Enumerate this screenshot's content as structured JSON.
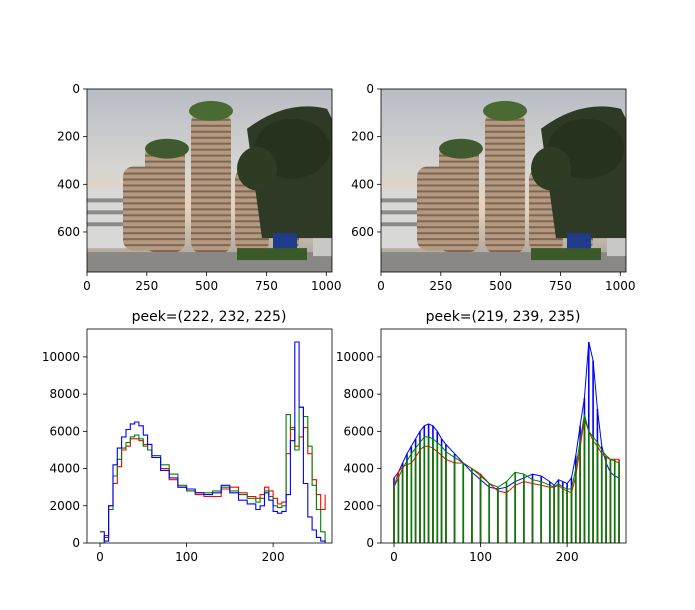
{
  "chart_data": [
    {
      "type": "image",
      "panel": "top-left",
      "title": "",
      "xlim": [
        0,
        1024
      ],
      "ylim": [
        768,
        0
      ],
      "xticks": [
        0,
        250,
        500,
        750,
        1000
      ],
      "yticks": [
        0,
        200,
        400,
        600
      ],
      "content": "photo of a building with stacked round towers and a tree, cloudy sky"
    },
    {
      "type": "image",
      "panel": "top-right",
      "title": "",
      "xlim": [
        0,
        1024
      ],
      "ylim": [
        768,
        0
      ],
      "xticks": [
        0,
        250,
        500,
        750,
        1000
      ],
      "yticks": [
        0,
        200,
        400,
        600
      ],
      "content": "photo of a building with stacked round towers and a tree, cloudy sky"
    },
    {
      "type": "line",
      "panel": "bottom-left",
      "title": "peek=(222, 232, 225)",
      "xlim": [
        -15,
        268
      ],
      "ylim": [
        0,
        11500
      ],
      "xticks": [
        0,
        100,
        200
      ],
      "yticks": [
        0,
        2000,
        4000,
        6000,
        8000,
        10000
      ],
      "series": [
        {
          "color": "#ff0000",
          "x": [
            0,
            5,
            10,
            15,
            20,
            25,
            30,
            35,
            40,
            45,
            50,
            55,
            60,
            70,
            80,
            90,
            100,
            110,
            120,
            130,
            140,
            150,
            160,
            170,
            180,
            185,
            190,
            195,
            200,
            205,
            210,
            215,
            220,
            225,
            230,
            235,
            240,
            245,
            250,
            255,
            260
          ],
          "y": [
            0,
            400,
            2000,
            3200,
            4100,
            5000,
            5200,
            5600,
            5600,
            5500,
            5300,
            5000,
            4600,
            4000,
            3400,
            3000,
            2800,
            2600,
            2500,
            2500,
            2900,
            3000,
            2700,
            2500,
            2400,
            2600,
            3000,
            2800,
            2400,
            2100,
            2200,
            4800,
            6200,
            5200,
            5700,
            6200,
            4800,
            3400,
            2600,
            1800,
            2600
          ]
        },
        {
          "color": "#008000",
          "x": [
            0,
            5,
            10,
            15,
            20,
            25,
            30,
            35,
            40,
            45,
            50,
            55,
            60,
            70,
            80,
            90,
            100,
            110,
            120,
            130,
            140,
            150,
            160,
            170,
            180,
            185,
            190,
            195,
            200,
            205,
            210,
            215,
            220,
            225,
            230,
            235,
            240,
            245,
            250,
            255,
            260
          ],
          "y": [
            0,
            300,
            1800,
            3600,
            4500,
            5100,
            5400,
            5700,
            5800,
            5600,
            5200,
            5000,
            4700,
            4200,
            3700,
            3100,
            2800,
            2700,
            2700,
            2800,
            3000,
            2800,
            2600,
            2400,
            2200,
            2400,
            2800,
            2500,
            2000,
            1900,
            2000,
            6900,
            6100,
            5000,
            7300,
            6800,
            5200,
            3100,
            1800,
            600,
            0
          ]
        },
        {
          "color": "#0000ff",
          "x": [
            0,
            5,
            10,
            15,
            20,
            25,
            30,
            35,
            40,
            45,
            50,
            55,
            60,
            70,
            80,
            90,
            100,
            110,
            120,
            130,
            140,
            150,
            160,
            170,
            180,
            185,
            190,
            195,
            200,
            205,
            210,
            215,
            220,
            225,
            230,
            235,
            240,
            245,
            250,
            255,
            260
          ],
          "y": [
            600,
            100,
            2000,
            4200,
            5100,
            5700,
            6100,
            6400,
            6500,
            6300,
            5800,
            5300,
            4600,
            3900,
            3500,
            3000,
            2900,
            2700,
            2600,
            2700,
            3100,
            2700,
            2300,
            2100,
            1800,
            2000,
            2700,
            2300,
            1700,
            1600,
            1700,
            2600,
            5500,
            10800,
            7300,
            3200,
            1400,
            700,
            300,
            100,
            0
          ]
        }
      ]
    },
    {
      "type": "bar",
      "panel": "bottom-right",
      "title": "peek=(219, 239, 235)",
      "xlim": [
        -15,
        268
      ],
      "ylim": [
        0,
        11500
      ],
      "xticks": [
        0,
        100,
        200
      ],
      "yticks": [
        0,
        2000,
        4000,
        6000,
        8000,
        10000
      ],
      "series": [
        {
          "color": "#0000ff",
          "x": [
            0,
            5,
            10,
            15,
            20,
            25,
            30,
            35,
            40,
            45,
            50,
            55,
            60,
            70,
            80,
            90,
            100,
            110,
            120,
            130,
            140,
            150,
            160,
            170,
            180,
            185,
            190,
            195,
            200,
            205,
            210,
            215,
            220,
            225,
            230,
            235,
            240,
            245,
            250,
            255,
            260
          ],
          "y": [
            3500,
            3800,
            4300,
            4800,
            5200,
            5600,
            6000,
            6300,
            6400,
            6300,
            6000,
            5600,
            5300,
            4800,
            4300,
            3800,
            3400,
            3000,
            2900,
            3000,
            3300,
            3500,
            3700,
            3600,
            3300,
            3100,
            3400,
            3300,
            3200,
            3500,
            4700,
            6300,
            7800,
            10800,
            9800,
            7200,
            5200,
            4300,
            3800,
            3600,
            3500
          ]
        },
        {
          "color": "#ff0000",
          "x": [
            0,
            5,
            10,
            15,
            20,
            25,
            30,
            35,
            40,
            45,
            50,
            55,
            60,
            70,
            80,
            90,
            100,
            110,
            120,
            130,
            140,
            150,
            160,
            170,
            180,
            185,
            190,
            195,
            200,
            205,
            210,
            215,
            220,
            225,
            230,
            235,
            240,
            245,
            250,
            255,
            260
          ],
          "y": [
            3000,
            3800,
            4100,
            4200,
            4300,
            4600,
            5000,
            5200,
            5200,
            5100,
            4900,
            4700,
            4500,
            4300,
            4300,
            4000,
            3700,
            3200,
            2800,
            2700,
            3100,
            3300,
            3200,
            3100,
            3000,
            3000,
            3100,
            2900,
            2800,
            2700,
            3600,
            5100,
            6700,
            6000,
            5500,
            5200,
            4800,
            4600,
            4500,
            4500,
            4500
          ]
        },
        {
          "color": "#008000",
          "x": [
            0,
            5,
            10,
            15,
            20,
            25,
            30,
            35,
            40,
            45,
            50,
            55,
            60,
            70,
            80,
            90,
            100,
            110,
            120,
            130,
            140,
            150,
            160,
            170,
            180,
            185,
            190,
            195,
            200,
            205,
            210,
            215,
            220,
            225,
            230,
            235,
            240,
            245,
            250,
            255,
            260
          ],
          "y": [
            3000,
            3500,
            4000,
            4400,
            4800,
            5100,
            5400,
            5700,
            5700,
            5600,
            5400,
            5200,
            4900,
            4600,
            4300,
            4000,
            3600,
            3200,
            3000,
            3300,
            3800,
            3700,
            3400,
            3300,
            3100,
            3000,
            3200,
            3000,
            2900,
            2900,
            4000,
            5500,
            6900,
            6000,
            5700,
            5400,
            5000,
            4700,
            4500,
            4400,
            4300
          ]
        }
      ]
    }
  ]
}
